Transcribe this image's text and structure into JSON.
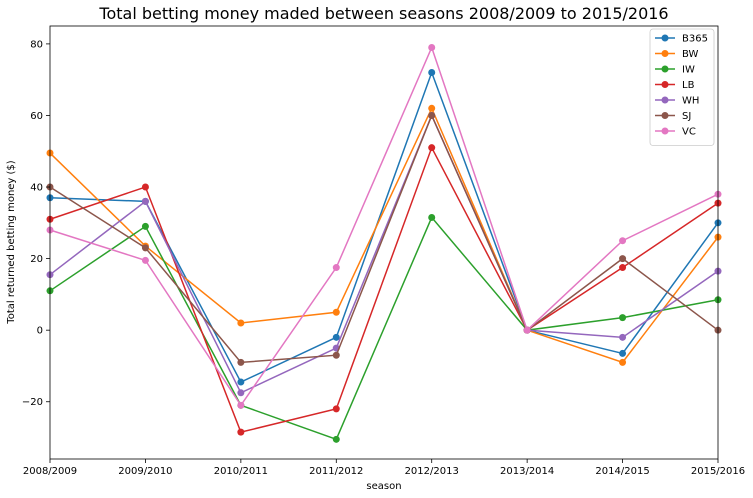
{
  "chart_data": {
    "type": "line",
    "title": "Total betting money maded between seasons 2008/2009 to 2015/2016",
    "xlabel": "season",
    "ylabel": "Total returned betting money ($)",
    "categories": [
      "2008/2009",
      "2009/2010",
      "2010/2011",
      "2011/2012",
      "2012/2013",
      "2013/2014",
      "2014/2015",
      "2015/2016"
    ],
    "ylim": [
      -36,
      85
    ],
    "yticks": [
      -20,
      0,
      20,
      40,
      60,
      80
    ],
    "grid": false,
    "legend_position": "top-right",
    "series": [
      {
        "name": "B365",
        "color": "#1f77b4",
        "values": [
          37,
          36,
          -14.5,
          -2,
          72,
          0,
          -6.5,
          30
        ]
      },
      {
        "name": "BW",
        "color": "#ff7f0e",
        "values": [
          49.5,
          23.5,
          2,
          5,
          62,
          0,
          -9,
          26
        ]
      },
      {
        "name": "IW",
        "color": "#2ca02c",
        "values": [
          11,
          29,
          -21,
          -30.5,
          31.5,
          0,
          3.5,
          8.5
        ]
      },
      {
        "name": "LB",
        "color": "#d62728",
        "values": [
          31,
          40,
          -28.5,
          -22,
          51,
          0,
          17.5,
          35.5
        ]
      },
      {
        "name": "WH",
        "color": "#9467bd",
        "values": [
          15.5,
          36,
          -17.5,
          -5,
          60,
          0,
          -2,
          16.5
        ]
      },
      {
        "name": "SJ",
        "color": "#8c564b",
        "values": [
          40,
          23,
          -9,
          -7,
          60,
          0,
          20,
          0
        ]
      },
      {
        "name": "VC",
        "color": "#e377c2",
        "values": [
          28,
          19.5,
          -21,
          17.5,
          79,
          0,
          25,
          38
        ]
      }
    ]
  }
}
